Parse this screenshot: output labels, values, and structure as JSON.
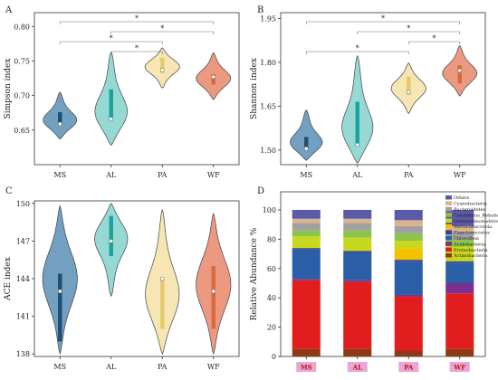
{
  "chart_data": [
    {
      "panel": "A",
      "type": "violin",
      "ylabel": "Simpson index",
      "ylim": [
        0.6,
        0.82
      ],
      "yticks": [
        0.65,
        0.7,
        0.75,
        0.8
      ],
      "ytick_labels": [
        "0.65",
        "0.70",
        "0.75",
        "0.80"
      ],
      "categories": [
        "MS",
        "AL",
        "PA",
        "WF"
      ],
      "colors": [
        "#5b8fb6",
        "#82d1cd",
        "#f4e2a6",
        "#e8886b"
      ],
      "box_colors": [
        "#1f4e73",
        "#1aa39b",
        "#e7c86a",
        "#d9683e"
      ],
      "groups": [
        {
          "min": 0.637,
          "max": 0.705,
          "mode": 0.663,
          "q1": 0.658,
          "q3": 0.676,
          "median": 0.659
        },
        {
          "min": 0.628,
          "max": 0.763,
          "mode": 0.672,
          "q1": 0.665,
          "q3": 0.709,
          "median": 0.666
        },
        {
          "min": 0.711,
          "max": 0.769,
          "mode": 0.742,
          "q1": 0.733,
          "q3": 0.755,
          "median": 0.737
        },
        {
          "min": 0.694,
          "max": 0.762,
          "mode": 0.724,
          "q1": 0.716,
          "q3": 0.731,
          "median": 0.727
        }
      ],
      "sig_brackets": [
        {
          "from": 0,
          "to": 3,
          "label": "*"
        },
        {
          "from": 1,
          "to": 3,
          "label": "*"
        },
        {
          "from": 0,
          "to": 2,
          "label": "*"
        },
        {
          "from": 1,
          "to": 2,
          "label": "*"
        }
      ]
    },
    {
      "panel": "B",
      "type": "violin",
      "ylabel": "Shannon index",
      "ylim": [
        1.45,
        1.97
      ],
      "yticks": [
        1.5,
        1.65,
        1.8,
        1.95
      ],
      "ytick_labels": [
        "1.50",
        "1.65",
        "1.80",
        "1.95"
      ],
      "categories": [
        "MS",
        "AL",
        "PA",
        "WF"
      ],
      "colors": [
        "#5b8fb6",
        "#82d1cd",
        "#f4e2a6",
        "#e8886b"
      ],
      "box_colors": [
        "#1f4e73",
        "#1aa39b",
        "#e7c86a",
        "#d9683e"
      ],
      "groups": [
        {
          "min": 1.465,
          "max": 1.637,
          "mode": 1.52,
          "q1": 1.502,
          "q3": 1.545,
          "median": 1.505
        },
        {
          "min": 1.455,
          "max": 1.823,
          "mode": 1.56,
          "q1": 1.515,
          "q3": 1.665,
          "median": 1.518
        },
        {
          "min": 1.625,
          "max": 1.798,
          "mode": 1.71,
          "q1": 1.688,
          "q3": 1.752,
          "median": 1.698
        },
        {
          "min": 1.685,
          "max": 1.857,
          "mode": 1.76,
          "q1": 1.728,
          "q3": 1.79,
          "median": 1.772
        }
      ],
      "sig_brackets": [
        {
          "from": 0,
          "to": 3,
          "label": "*"
        },
        {
          "from": 1,
          "to": 3,
          "label": "*"
        },
        {
          "from": 2,
          "to": 3,
          "label": "*"
        },
        {
          "from": 0,
          "to": 2,
          "label": "*"
        }
      ]
    },
    {
      "panel": "C",
      "type": "violin",
      "ylabel": "ACE index",
      "ylim": [
        137.8,
        150.2
      ],
      "yticks": [
        138,
        141,
        144,
        147,
        150
      ],
      "ytick_labels": [
        "138",
        "141",
        "144",
        "147",
        "150"
      ],
      "categories": [
        "MS",
        "AL",
        "PA",
        "WF"
      ],
      "colors": [
        "#5b8fb6",
        "#82d1cd",
        "#f4e2a6",
        "#e8886b"
      ],
      "box_colors": [
        "#1f4e73",
        "#1aa39b",
        "#e7c86a",
        "#d9683e"
      ],
      "groups": [
        {
          "min": 138.0,
          "max": 149.8,
          "mode": 144.0,
          "q1": 139.0,
          "q3": 144.4,
          "median": 143.0
        },
        {
          "min": 142.6,
          "max": 150.0,
          "mode": 147.4,
          "q1": 145.8,
          "q3": 149.0,
          "median": 147.0
        },
        {
          "min": 138.0,
          "max": 149.5,
          "mode": 142.5,
          "q1": 140.0,
          "q3": 144.0,
          "median": 144.0
        },
        {
          "min": 138.0,
          "max": 149.2,
          "mode": 143.5,
          "q1": 140.0,
          "q3": 145.0,
          "median": 143.0
        }
      ]
    },
    {
      "panel": "D",
      "type": "stacked_bar",
      "ylabel": "Relative Abundance %",
      "ylim": [
        0,
        100
      ],
      "yticks": [
        0,
        20,
        40,
        60,
        80,
        100
      ],
      "ytick_labels": [
        "0",
        "20",
        "40",
        "60",
        "80",
        "100"
      ],
      "categories": [
        "MS",
        "AL",
        "PA",
        "WF"
      ],
      "series": [
        {
          "name": "Actinobacteria",
          "color": "#8b3a1a",
          "values": [
            5,
            5,
            4,
            5
          ]
        },
        {
          "name": "Proteobacteria",
          "color": "#e11d1d",
          "values": [
            47,
            46,
            37,
            38
          ]
        },
        {
          "name": "Acidobacteria",
          "color": "#7b2f8f",
          "values": [
            1,
            1,
            1,
            7
          ]
        },
        {
          "name": "Chloroflexi",
          "color": "#2a5fa8",
          "values": [
            20,
            19,
            23,
            14
          ]
        },
        {
          "name": "Planctomycetes",
          "color": "#3e3e8c",
          "values": [
            1,
            1,
            1,
            1
          ]
        },
        {
          "name": "Verrucomicrobia",
          "color": "#f2c200",
          "values": [
            0,
            0,
            8,
            0
          ]
        },
        {
          "name": "Gemmatimonadetes",
          "color": "#c8d81e",
          "values": [
            8,
            9,
            5,
            10
          ]
        },
        {
          "name": "Candidatus_Rokubacteria",
          "color": "#8cc34a",
          "values": [
            4,
            5,
            5,
            5
          ]
        },
        {
          "name": "Bacteroidetes",
          "color": "#a1a1a1",
          "values": [
            5,
            5,
            5,
            5
          ]
        },
        {
          "name": "Cyanobacteria",
          "color": "#d9b38c",
          "values": [
            3,
            3,
            4,
            4
          ]
        },
        {
          "name": "Others",
          "color": "#5a5aa8",
          "values": [
            6,
            6,
            7,
            11
          ]
        }
      ],
      "legend_order": [
        "Others",
        "Cyanobacteria",
        "Bacteroidetes",
        "Candidatus_Rokubacteria",
        "Gemmatimonadetes",
        "Verrucomicrobia",
        "Planctomycetes",
        "Chloroflexi",
        "Acidobacteria",
        "Proteobacteria",
        "Actinobacteria"
      ],
      "category_label_bg": "#e8a7d6"
    }
  ]
}
